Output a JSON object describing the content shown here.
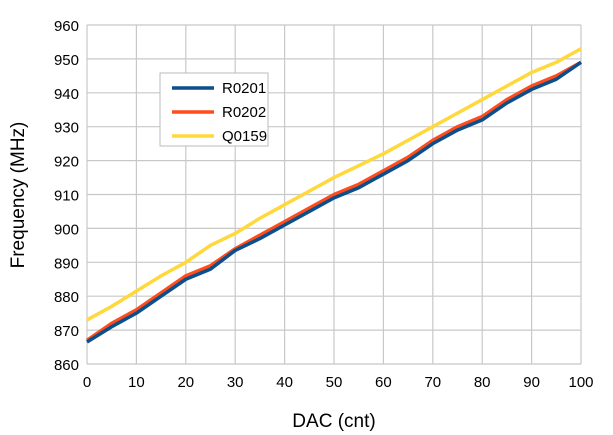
{
  "chart_data": {
    "type": "line",
    "title": "",
    "xlabel": "DAC (cnt)",
    "ylabel": "Frequency (MHz)",
    "xlim": [
      0,
      100
    ],
    "ylim": [
      860,
      960
    ],
    "xticks": [
      0,
      10,
      20,
      30,
      40,
      50,
      60,
      70,
      80,
      90,
      100
    ],
    "yticks": [
      860,
      870,
      880,
      890,
      900,
      910,
      920,
      930,
      940,
      950,
      960
    ],
    "grid": true,
    "legend_position": "top-left",
    "x": [
      0,
      5,
      10,
      15,
      20,
      25,
      30,
      35,
      40,
      45,
      50,
      55,
      60,
      65,
      70,
      75,
      80,
      85,
      90,
      95,
      100
    ],
    "series": [
      {
        "name": "R0201",
        "color": "#0b4f8c",
        "values": [
          866.5,
          871,
          875,
          880,
          885,
          888,
          893.5,
          897,
          901,
          905,
          909,
          912,
          916,
          920,
          925,
          929,
          932,
          937,
          941,
          944,
          949
        ]
      },
      {
        "name": "R0202",
        "color": "#ff4c1c",
        "values": [
          867,
          872,
          876,
          881,
          886,
          889,
          894,
          898,
          902,
          906,
          910,
          913,
          917,
          921,
          926,
          930,
          933,
          938,
          942,
          945,
          949
        ]
      },
      {
        "name": "Q0159",
        "color": "#ffd83c",
        "values": [
          873,
          877,
          881.5,
          886,
          890,
          895,
          898.5,
          903,
          907,
          911,
          915,
          918.5,
          922,
          926,
          930,
          934,
          938,
          942,
          946,
          949,
          953
        ]
      }
    ]
  }
}
